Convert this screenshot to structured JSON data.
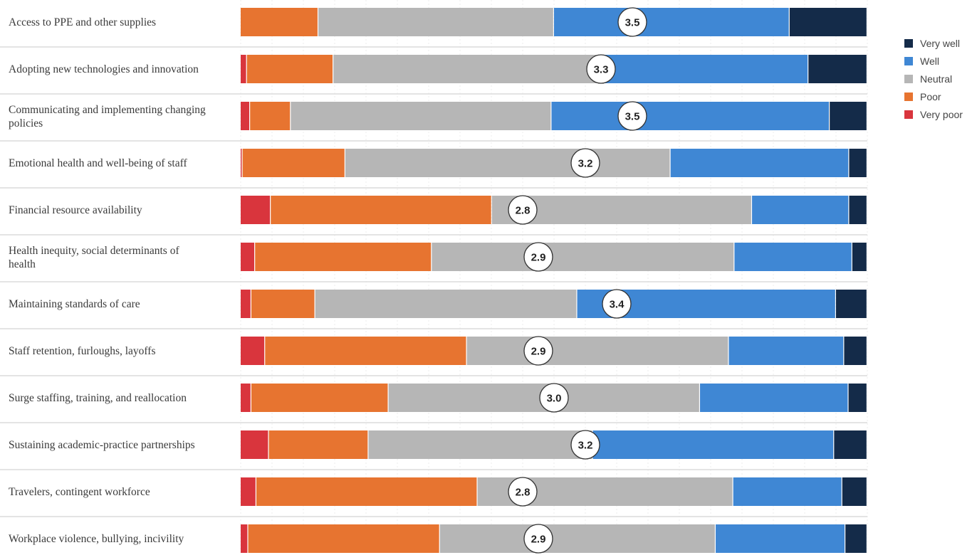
{
  "chart_data": {
    "type": "bar",
    "orientation": "horizontal",
    "stacked": true,
    "normalized": true,
    "title": "",
    "xlabel": "",
    "ylabel": "",
    "xlim": [
      0,
      100
    ],
    "legend_position": "right",
    "grid": true,
    "colors": {
      "Very poor": "#d9353d",
      "Poor": "#e77430",
      "Neutral": "#b6b6b6",
      "Well": "#3f87d4",
      "Very well": "#142b49"
    },
    "legend": [
      "Very well",
      "Well",
      "Neutral",
      "Poor",
      "Very poor"
    ],
    "categories": [
      "Access to PPE and other supplies",
      "Adopting new technologies and innovation",
      "Communicating and implementing changing policies",
      "Emotional health and well-being of staff",
      "Financial resource availability",
      "Health inequity, social determinants of health",
      "Maintaining standards of care",
      "Staff retention, furloughs, layoffs",
      "Surge staffing, training, and reallocation",
      "Sustaining academic-practice partnerships",
      "Travelers, contingent workforce",
      "Workplace violence, bullying, incivility"
    ],
    "series": [
      {
        "name": "Very poor",
        "values": [
          0.0,
          1.0,
          1.5,
          0.3,
          4.8,
          2.3,
          1.7,
          3.9,
          1.7,
          4.5,
          2.5,
          1.2
        ]
      },
      {
        "name": "Poor",
        "values": [
          12.4,
          13.8,
          6.5,
          16.4,
          35.3,
          28.2,
          10.2,
          32.2,
          21.9,
          15.9,
          35.3,
          30.6
        ]
      },
      {
        "name": "Neutral",
        "values": [
          37.6,
          43.3,
          41.6,
          51.9,
          41.5,
          48.3,
          41.8,
          41.8,
          49.7,
          35.8,
          40.8,
          44.0
        ]
      },
      {
        "name": "Well",
        "values": [
          37.6,
          32.5,
          44.4,
          28.5,
          15.5,
          18.8,
          41.3,
          18.4,
          23.7,
          38.5,
          17.4,
          20.7
        ]
      },
      {
        "name": "Very well",
        "values": [
          12.4,
          9.4,
          6.0,
          2.9,
          2.9,
          2.4,
          5.0,
          3.7,
          3.0,
          5.3,
          4.0,
          3.5
        ]
      }
    ],
    "averages": [
      "3.5",
      "3.3",
      "3.5",
      "3.2",
      "2.8",
      "2.9",
      "3.4",
      "2.9",
      "3.0",
      "3.2",
      "2.8",
      "2.9"
    ]
  }
}
